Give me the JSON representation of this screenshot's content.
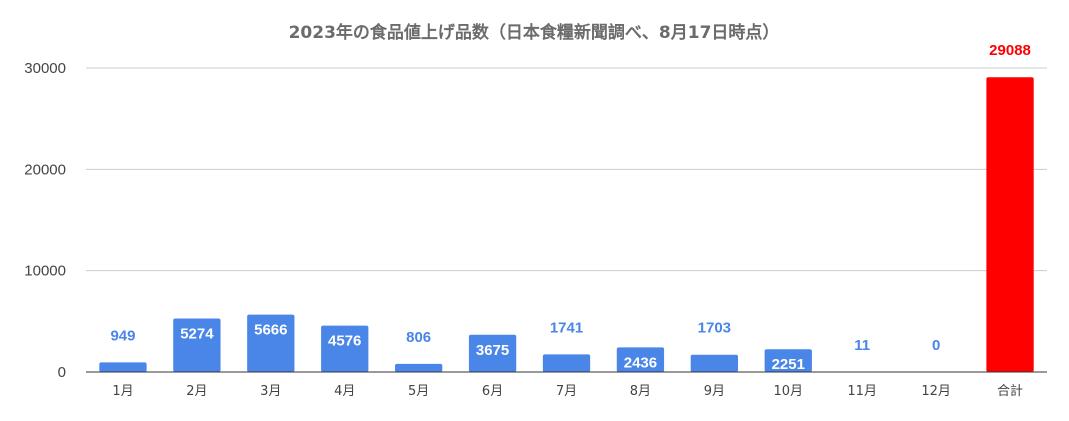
{
  "chart_data": {
    "type": "bar",
    "title": "2023年の食品値上げ品数（日本食糧新聞調べ、8月17日時点）",
    "categories": [
      "1月",
      "2月",
      "3月",
      "4月",
      "5月",
      "6月",
      "7月",
      "8月",
      "9月",
      "10月",
      "11月",
      "12月",
      "合計"
    ],
    "values": [
      949,
      5274,
      5666,
      4576,
      806,
      3675,
      1741,
      2436,
      1703,
      2251,
      11,
      0,
      29088
    ],
    "ylim": [
      0,
      30000
    ],
    "yticks": [
      "0",
      "10000",
      "20000",
      "30000"
    ],
    "ytick_values": [
      0,
      10000,
      20000,
      30000
    ],
    "grid": true,
    "legend": "none",
    "xlabel": "",
    "ylabel": "",
    "colors": {
      "bar": "#4a86e8",
      "total_bar": "#ff0000",
      "label_outside": "#4a86e8",
      "label_inside": "#ffffff",
      "total_label": "#ff0000",
      "title": "#6b6b6b",
      "grid": "#cccccc"
    }
  }
}
